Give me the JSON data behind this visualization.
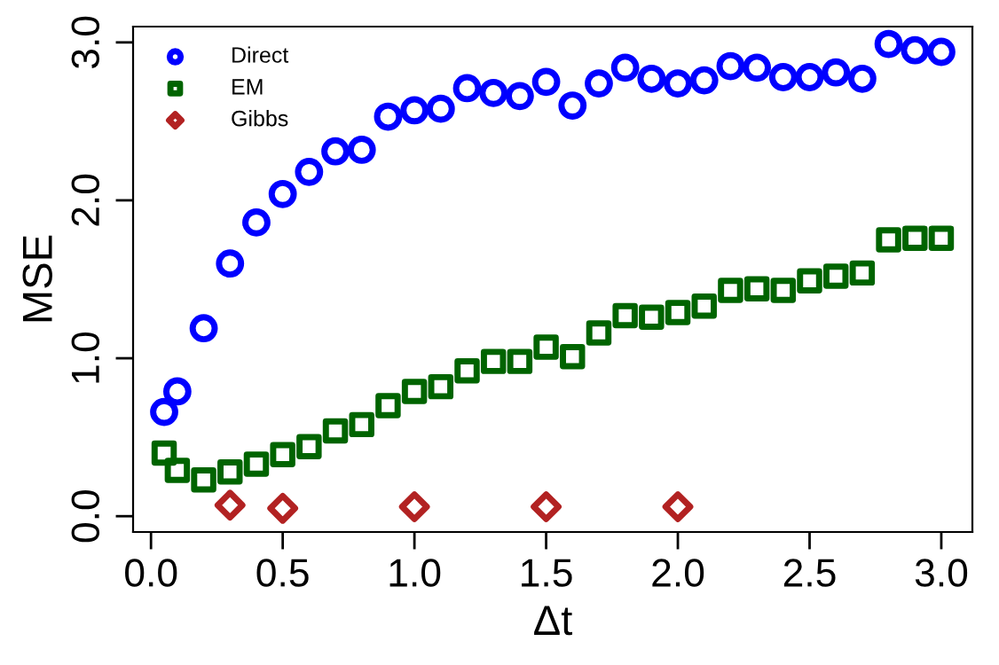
{
  "chart_data": {
    "type": "scatter",
    "xlabel": "Δt",
    "ylabel": "MSE",
    "xlim": [
      -0.068,
      3.118
    ],
    "ylim": [
      -0.1,
      3.1
    ],
    "xticks": [
      {
        "value": 0,
        "label": "0.0"
      },
      {
        "value": 0.5,
        "label": "0.5"
      },
      {
        "value": 1,
        "label": "1.0"
      },
      {
        "value": 1.5,
        "label": "1.5"
      },
      {
        "value": 2,
        "label": "2.0"
      },
      {
        "value": 2.5,
        "label": "2.5"
      },
      {
        "value": 3,
        "label": "3.0"
      }
    ],
    "yticks": [
      {
        "value": 0,
        "label": "0.0"
      },
      {
        "value": 1,
        "label": "1.0"
      },
      {
        "value": 2,
        "label": "2.0"
      },
      {
        "value": 3,
        "label": "3.0"
      }
    ],
    "grid": false,
    "legend": "top left",
    "series": [
      {
        "name": "Direct",
        "color": "#0000ff",
        "marker": "circle",
        "x": [
          0.05,
          0.1,
          0.2,
          0.3,
          0.4,
          0.5,
          0.6,
          0.7,
          0.8,
          0.9,
          1.0,
          1.1,
          1.2,
          1.3,
          1.4,
          1.5,
          1.6,
          1.7,
          1.8,
          1.9,
          2.0,
          2.1,
          2.2,
          2.3,
          2.4,
          2.5,
          2.6,
          2.7,
          2.8,
          2.9,
          3.0
        ],
        "values": [
          0.66,
          0.79,
          1.19,
          1.6,
          1.86,
          2.04,
          2.18,
          2.31,
          2.32,
          2.53,
          2.57,
          2.58,
          2.71,
          2.68,
          2.66,
          2.75,
          2.6,
          2.74,
          2.84,
          2.77,
          2.74,
          2.76,
          2.85,
          2.84,
          2.78,
          2.78,
          2.81,
          2.77,
          2.99,
          2.95,
          2.94
        ]
      },
      {
        "name": "EM",
        "color": "#006400",
        "marker": "square",
        "x": [
          0.05,
          0.1,
          0.2,
          0.3,
          0.4,
          0.5,
          0.6,
          0.7,
          0.8,
          0.9,
          1.0,
          1.1,
          1.2,
          1.3,
          1.4,
          1.5,
          1.6,
          1.7,
          1.8,
          1.9,
          2.0,
          2.1,
          2.2,
          2.3,
          2.4,
          2.5,
          2.6,
          2.7,
          2.8,
          2.9,
          3.0
        ],
        "values": [
          0.4,
          0.29,
          0.23,
          0.28,
          0.33,
          0.39,
          0.44,
          0.54,
          0.58,
          0.7,
          0.79,
          0.82,
          0.92,
          0.98,
          0.98,
          1.07,
          1.01,
          1.16,
          1.27,
          1.26,
          1.29,
          1.33,
          1.43,
          1.44,
          1.43,
          1.49,
          1.52,
          1.54,
          1.75,
          1.76,
          1.76
        ]
      },
      {
        "name": "Gibbs",
        "color": "#b22222",
        "marker": "diamond",
        "x": [
          0.3,
          0.5,
          1.0,
          1.5,
          2.0
        ],
        "values": [
          0.07,
          0.05,
          0.06,
          0.06,
          0.06
        ]
      }
    ]
  }
}
